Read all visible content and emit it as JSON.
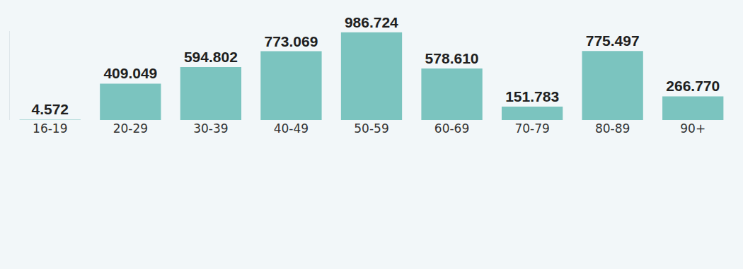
{
  "chart_data": {
    "type": "bar",
    "categories": [
      "16-19",
      "20-29",
      "30-39",
      "40-49",
      "50-59",
      "60-69",
      "70-79",
      "80-89",
      "90+"
    ],
    "values": [
      4572,
      409049,
      594802,
      773069,
      986724,
      578610,
      151783,
      775497,
      266770
    ],
    "value_labels": [
      "4.572",
      "409.049",
      "594.802",
      "773.069",
      "986.724",
      "578.610",
      "151.783",
      "775.497",
      "266.770"
    ],
    "color": "#7bc4bf",
    "ylim": [
      0,
      1000000
    ],
    "data_labels": true,
    "tick_labels": "x",
    "grid": false
  }
}
